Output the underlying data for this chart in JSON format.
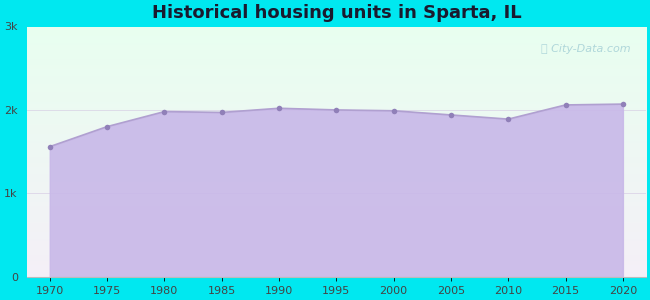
{
  "title": "Historical housing units in Sparta, IL",
  "title_fontsize": 13,
  "title_fontweight": "bold",
  "title_color": "#1a1a2e",
  "background_color": "#00e8f0",
  "years": [
    1970,
    1975,
    1980,
    1985,
    1990,
    1995,
    2000,
    2005,
    2010,
    2015,
    2020
  ],
  "values": [
    1560,
    1800,
    1980,
    1970,
    2020,
    2000,
    1990,
    1940,
    1890,
    2060,
    2070
  ],
  "line_color": "#b0a0d0",
  "fill_color": "#c8b8e8",
  "fill_alpha": 0.9,
  "marker_color": "#9080b8",
  "marker_size": 4,
  "yticks": [
    0,
    1000,
    2000,
    3000
  ],
  "ytick_labels": [
    "0",
    "1k",
    "2k",
    "3k"
  ],
  "xticks": [
    1970,
    1975,
    1980,
    1985,
    1990,
    1995,
    2000,
    2005,
    2010,
    2015,
    2020
  ],
  "xlim": [
    1968,
    2022
  ],
  "ylim": [
    0,
    3000
  ],
  "watermark": "City-Data.com",
  "watermark_color": "#80b8c8",
  "watermark_alpha": 0.55,
  "grid_color": "#d0c0e0",
  "grid_alpha": 0.6,
  "tick_fontsize": 8,
  "tick_color": "#444444"
}
